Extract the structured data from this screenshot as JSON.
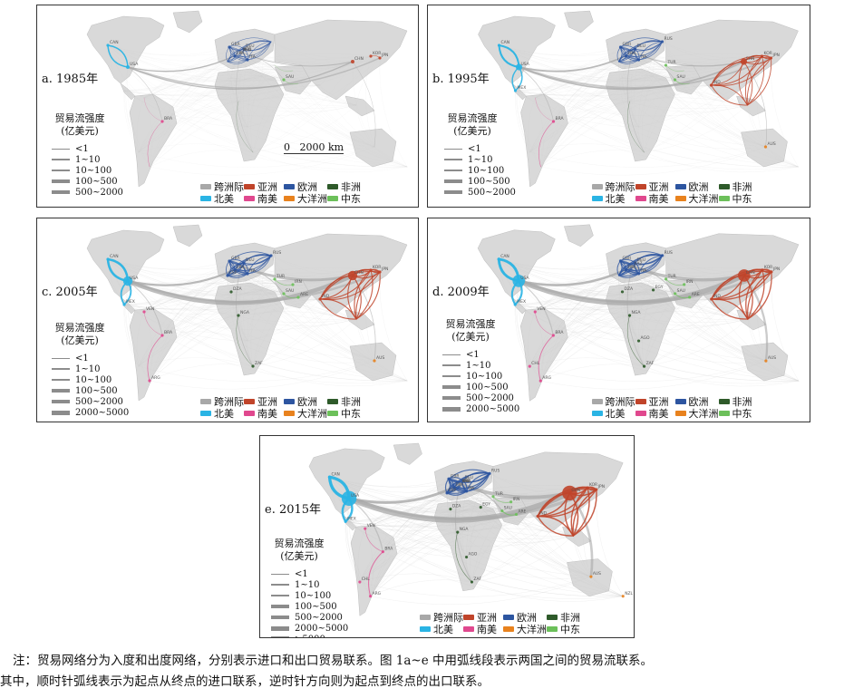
{
  "panels": [
    {
      "title": "a. 1985年",
      "legend_title": "贸易流强度\n(亿美元)",
      "legend_items": [
        "<1",
        "1~10",
        "10~100",
        "100~500",
        "500~2000"
      ],
      "regions": [
        "跨洲际",
        "亚洲",
        "欧洲",
        "非洲",
        "北美",
        "南美",
        "大洋洲",
        "中东"
      ],
      "scale_bar": "0   2000 km",
      "country_labels": [
        "CAN",
        "USA",
        "GBR",
        "FRA",
        "DEU",
        "ITA",
        "NLD",
        "BEL",
        "SUN",
        "SAU",
        "CHN",
        "JPN",
        "KOR",
        "BRA"
      ]
    },
    {
      "title": "b. 1995年",
      "legend_title": "贸易流强度\n(亿美元)",
      "legend_items": [
        "<1",
        "1~10",
        "10~100",
        "100~500",
        "500~2000"
      ],
      "regions": [
        "跨洲际",
        "亚洲",
        "欧洲",
        "非洲",
        "北美",
        "南美",
        "大洋洲",
        "中东"
      ],
      "country_labels": [
        "CAN",
        "USA",
        "MEX",
        "GBR",
        "FRA",
        "DEU",
        "ITA",
        "RUS",
        "TUR",
        "SAU",
        "IND",
        "CHN",
        "JPN",
        "KOR",
        "BRA",
        "AUS"
      ]
    },
    {
      "title": "c. 2005年",
      "legend_title": "贸易流强度\n(亿美元)",
      "legend_items": [
        "<1",
        "1~10",
        "10~100",
        "100~500",
        "500~2000",
        "2000~5000"
      ],
      "regions": [
        "跨洲际",
        "亚洲",
        "欧洲",
        "非洲",
        "北美",
        "南美",
        "大洋洲",
        "中东"
      ],
      "country_labels": [
        "CAN",
        "USA",
        "MEX",
        "GBR",
        "FRA",
        "DEU",
        "ESP",
        "ITA",
        "RUS",
        "TUR",
        "IRN",
        "SAU",
        "ARE",
        "DZA",
        "NGA",
        "ZAF",
        "IND",
        "CHN",
        "JPN",
        "KOR",
        "VEN",
        "BRA",
        "ARG",
        "AUS"
      ]
    },
    {
      "title": "d. 2009年",
      "legend_title": "贸易流强度\n(亿美元)",
      "legend_items": [
        "<1",
        "1~10",
        "10~100",
        "100~500",
        "500~2000",
        "2000~5000"
      ],
      "regions": [
        "跨洲际",
        "亚洲",
        "欧洲",
        "非洲",
        "北美",
        "南美",
        "大洋洲",
        "中东"
      ],
      "country_labels": [
        "CAN",
        "USA",
        "MEX",
        "GBR",
        "FRA",
        "DEU",
        "ITA",
        "RUS",
        "KAZ",
        "TUR",
        "IRN",
        "SAU",
        "ARE",
        "DZA",
        "EGY",
        "NGA",
        "AGO",
        "ZAF",
        "IND",
        "CHN",
        "JPN",
        "KOR",
        "VEN",
        "BRA",
        "CHL",
        "ARG",
        "AUS"
      ]
    },
    {
      "title": "e. 2015年",
      "legend_title": "贸易流强度\n(亿美元)",
      "legend_items": [
        "<1",
        "1~10",
        "10~100",
        "100~500",
        "500~2000",
        "2000~5000",
        ">5000"
      ],
      "regions": [
        "跨洲际",
        "亚洲",
        "欧洲",
        "非洲",
        "北美",
        "南美",
        "大洋洲",
        "中东"
      ],
      "country_labels": [
        "CAN",
        "USA",
        "MEX",
        "GBR",
        "FRA",
        "DEU",
        "ITA",
        "ESP",
        "RUS",
        "KAZ",
        "TUR",
        "IRN",
        "SAU",
        "ARE",
        "MAR",
        "DZA",
        "EGY",
        "NGA",
        "AGO",
        "ZAF",
        "PAK",
        "IND",
        "CHN",
        "JPN",
        "KOR",
        "VEN",
        "COL",
        "BRA",
        "CHL",
        "ARG",
        "AUS",
        "NZL"
      ]
    }
  ],
  "region_colors": {
    "跨洲际": "#a8a8a8",
    "亚洲": "#c0442a",
    "欧洲": "#2d55a0",
    "非洲": "#2e5a2a",
    "北美": "#2ab4e4",
    "南美": "#e0488e",
    "大洋洲": "#e8821e",
    "中东": "#6cc05a"
  },
  "note": {
    "line1": "注：贸易网络分为入度和出度网络，分别表示进口和出口贸易联系。图 1a~e 中用弧线段表示两国之间的贸易流联系。",
    "line2": "其中，顺时针弧线表示为起点从终点的进口联系，逆时针方向则为起点到终点的出口联系。"
  }
}
